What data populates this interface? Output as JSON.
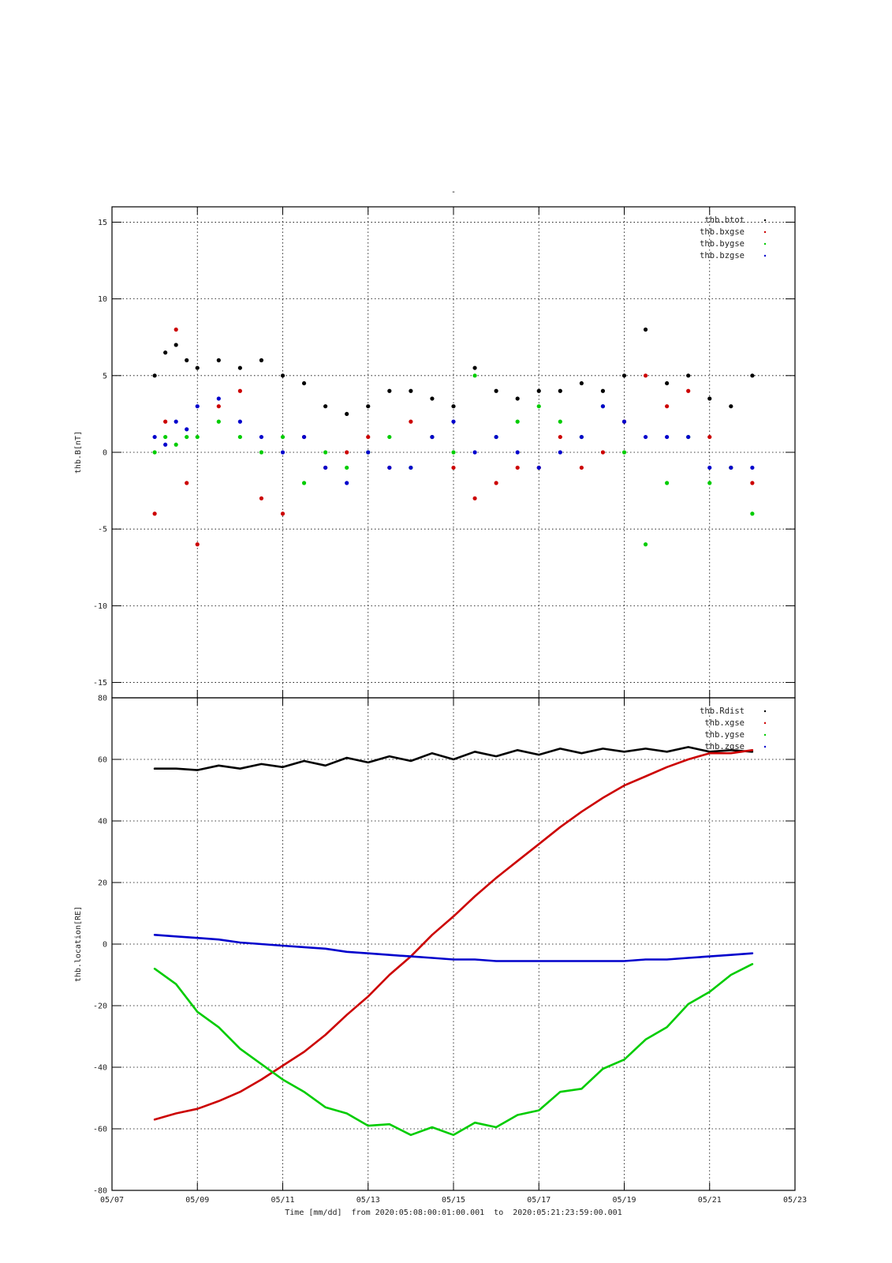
{
  "page_title": "-",
  "chart_data": [
    {
      "type": "scatter",
      "ylabel": "thb.B[nT]",
      "xlim": [
        "05/07",
        "05/23"
      ],
      "ylim": [
        -16,
        16
      ],
      "yticks": [
        15,
        10,
        5,
        0,
        -5,
        -10,
        -15
      ],
      "ytick_labels": [
        "15",
        "10",
        "5",
        "0",
        "-5",
        "-10",
        "-15"
      ],
      "grid": true,
      "legend_position": "top-right",
      "series": [
        {
          "name": "thb.btot",
          "color": "#000000",
          "x": [
            "05/08",
            "05/08 06h",
            "05/08 12h",
            "05/08 18h",
            "05/09",
            "05/09 12h",
            "05/10",
            "05/10 12h",
            "05/11",
            "05/11 12h",
            "05/12",
            "05/12 12h",
            "05/13",
            "05/13 12h",
            "05/14",
            "05/14 12h",
            "05/15",
            "05/15 12h",
            "05/16",
            "05/16 12h",
            "05/17",
            "05/17 12h",
            "05/18",
            "05/18 12h",
            "05/19",
            "05/19 12h",
            "05/20",
            "05/20 12h",
            "05/21",
            "05/21 12h",
            "05/22"
          ],
          "values": [
            5.0,
            6.5,
            7.0,
            6.0,
            5.5,
            6.0,
            5.5,
            6.0,
            5.0,
            4.5,
            3.0,
            2.5,
            3.0,
            4.0,
            4.0,
            3.5,
            3.0,
            5.5,
            4.0,
            3.5,
            4.0,
            4.0,
            4.5,
            4.0,
            5.0,
            8.0,
            4.5,
            5.0,
            3.5,
            3.0,
            5.0
          ]
        },
        {
          "name": "thb.bxgse",
          "color": "#cc0000",
          "x": [
            "05/08",
            "05/08 06h",
            "05/08 12h",
            "05/08 18h",
            "05/09",
            "05/09 12h",
            "05/10",
            "05/10 12h",
            "05/11",
            "05/11 12h",
            "05/12",
            "05/12 12h",
            "05/13",
            "05/13 12h",
            "05/14",
            "05/14 12h",
            "05/15",
            "05/15 12h",
            "05/16",
            "05/16 12h",
            "05/17",
            "05/17 12h",
            "05/18",
            "05/18 12h",
            "05/19",
            "05/19 12h",
            "05/20",
            "05/20 12h",
            "05/21",
            "05/21 12h",
            "05/22"
          ],
          "values": [
            -4.0,
            2.0,
            8.0,
            -2.0,
            -6.0,
            3.0,
            4.0,
            -3.0,
            -4.0,
            1.0,
            -1.0,
            0.0,
            1.0,
            -1.0,
            2.0,
            1.0,
            -1.0,
            -3.0,
            -2.0,
            -1.0,
            -1.0,
            1.0,
            -1.0,
            0.0,
            2.0,
            5.0,
            3.0,
            4.0,
            1.0,
            -1.0,
            -2.0
          ]
        },
        {
          "name": "thb.bygse",
          "color": "#00cc00",
          "x": [
            "05/08",
            "05/08 06h",
            "05/08 12h",
            "05/08 18h",
            "05/09",
            "05/09 12h",
            "05/10",
            "05/10 12h",
            "05/11",
            "05/11 12h",
            "05/12",
            "05/12 12h",
            "05/13",
            "05/13 12h",
            "05/14",
            "05/14 12h",
            "05/15",
            "05/15 12h",
            "05/16",
            "05/16 12h",
            "05/17",
            "05/17 12h",
            "05/18",
            "05/18 12h",
            "05/19",
            "05/19 12h",
            "05/20",
            "05/20 12h",
            "05/21",
            "05/21 12h",
            "05/22"
          ],
          "values": [
            0.0,
            1.0,
            0.5,
            1.0,
            1.0,
            2.0,
            1.0,
            0.0,
            1.0,
            -2.0,
            0.0,
            -1.0,
            0.0,
            1.0,
            -1.0,
            1.0,
            0.0,
            5.0,
            1.0,
            2.0,
            3.0,
            2.0,
            1.0,
            3.0,
            0.0,
            -6.0,
            -2.0,
            1.0,
            -2.0,
            -1.0,
            -4.0
          ]
        },
        {
          "name": "thb.bzgse",
          "color": "#0000cc",
          "x": [
            "05/08",
            "05/08 06h",
            "05/08 12h",
            "05/08 18h",
            "05/09",
            "05/09 12h",
            "05/10",
            "05/10 12h",
            "05/11",
            "05/11 12h",
            "05/12",
            "05/12 12h",
            "05/13",
            "05/13 12h",
            "05/14",
            "05/14 12h",
            "05/15",
            "05/15 12h",
            "05/16",
            "05/16 12h",
            "05/17",
            "05/17 12h",
            "05/18",
            "05/18 12h",
            "05/19",
            "05/19 12h",
            "05/20",
            "05/20 12h",
            "05/21",
            "05/21 12h",
            "05/22"
          ],
          "values": [
            1.0,
            0.5,
            2.0,
            1.5,
            3.0,
            3.5,
            2.0,
            1.0,
            0.0,
            1.0,
            -1.0,
            -2.0,
            0.0,
            -1.0,
            -1.0,
            1.0,
            2.0,
            0.0,
            1.0,
            0.0,
            -1.0,
            0.0,
            1.0,
            3.0,
            2.0,
            1.0,
            1.0,
            1.0,
            -1.0,
            -1.0,
            -1.0
          ]
        }
      ]
    },
    {
      "type": "line",
      "ylabel": "thb.location[RE]",
      "xlabel": "Time [mm/dd]  from 2020:05:08:00:01:00.001  to  2020:05:21:23:59:00.001",
      "xlim": [
        "05/07",
        "05/23"
      ],
      "ylim": [
        -80,
        80
      ],
      "yticks": [
        80,
        60,
        40,
        20,
        0,
        -20,
        -40,
        -60,
        -80
      ],
      "ytick_labels": [
        "80",
        "60",
        "40",
        "20",
        "0",
        "-20",
        "-40",
        "-60",
        "-80"
      ],
      "xticks": [
        "05/07",
        "05/09",
        "05/11",
        "05/13",
        "05/15",
        "05/17",
        "05/19",
        "05/21",
        "05/23"
      ],
      "grid": true,
      "legend_position": "top-right",
      "series": [
        {
          "name": "thb.Rdist",
          "color": "#000000",
          "x": [
            "05/08",
            "05/08 12h",
            "05/09",
            "05/09 12h",
            "05/10",
            "05/10 12h",
            "05/11",
            "05/11 12h",
            "05/12",
            "05/12 12h",
            "05/13",
            "05/13 12h",
            "05/14",
            "05/14 12h",
            "05/15",
            "05/15 12h",
            "05/16",
            "05/16 12h",
            "05/17",
            "05/17 12h",
            "05/18",
            "05/18 12h",
            "05/19",
            "05/19 12h",
            "05/20",
            "05/20 12h",
            "05/21",
            "05/21 12h",
            "05/22"
          ],
          "values": [
            57.0,
            57.0,
            56.5,
            58.0,
            57.0,
            58.5,
            57.5,
            59.5,
            58.0,
            60.5,
            59.0,
            61.0,
            59.5,
            62.0,
            60.0,
            62.5,
            61.0,
            63.0,
            61.5,
            63.5,
            62.0,
            63.5,
            62.5,
            63.5,
            62.5,
            64.0,
            62.5,
            63.0,
            62.5
          ]
        },
        {
          "name": "thb.xgse",
          "color": "#cc0000",
          "x": [
            "05/08",
            "05/08 12h",
            "05/09",
            "05/09 12h",
            "05/10",
            "05/10 12h",
            "05/11",
            "05/11 12h",
            "05/12",
            "05/12 12h",
            "05/13",
            "05/13 12h",
            "05/14",
            "05/14 12h",
            "05/15",
            "05/15 12h",
            "05/16",
            "05/16 12h",
            "05/17",
            "05/17 12h",
            "05/18",
            "05/18 12h",
            "05/19",
            "05/19 12h",
            "05/20",
            "05/20 12h",
            "05/21",
            "05/21 12h",
            "05/22"
          ],
          "values": [
            -57.0,
            -55.0,
            -53.5,
            -51.0,
            -48.0,
            -44.0,
            -39.5,
            -35.0,
            -29.5,
            -23.0,
            -17.0,
            -10.0,
            -4.0,
            3.0,
            9.0,
            15.5,
            21.5,
            27.0,
            32.5,
            38.0,
            43.0,
            47.5,
            51.5,
            54.5,
            57.5,
            60.0,
            62.0,
            62.0,
            63.0
          ]
        },
        {
          "name": "thb.ygse",
          "color": "#00cc00",
          "x": [
            "05/08",
            "05/08 12h",
            "05/09",
            "05/09 12h",
            "05/10",
            "05/10 12h",
            "05/11",
            "05/11 12h",
            "05/12",
            "05/12 12h",
            "05/13",
            "05/13 12h",
            "05/14",
            "05/14 12h",
            "05/15",
            "05/15 12h",
            "05/16",
            "05/16 12h",
            "05/17",
            "05/17 12h",
            "05/18",
            "05/18 12h",
            "05/19",
            "05/19 12h",
            "05/20",
            "05/20 12h",
            "05/21",
            "05/21 12h",
            "05/22"
          ],
          "values": [
            -8.0,
            -13.0,
            -22.0,
            -27.0,
            -34.0,
            -39.0,
            -44.0,
            -48.0,
            -53.0,
            -55.0,
            -59.0,
            -58.5,
            -62.0,
            -59.5,
            -62.0,
            -58.0,
            -59.5,
            -55.5,
            -54.0,
            -48.0,
            -47.0,
            -40.5,
            -37.5,
            -31.0,
            -27.0,
            -19.5,
            -15.5,
            -10.0,
            -6.5
          ]
        },
        {
          "name": "thb.zgse",
          "color": "#0000cc",
          "x": [
            "05/08",
            "05/08 12h",
            "05/09",
            "05/09 12h",
            "05/10",
            "05/10 12h",
            "05/11",
            "05/11 12h",
            "05/12",
            "05/12 12h",
            "05/13",
            "05/13 12h",
            "05/14",
            "05/14 12h",
            "05/15",
            "05/15 12h",
            "05/16",
            "05/16 12h",
            "05/17",
            "05/17 12h",
            "05/18",
            "05/18 12h",
            "05/19",
            "05/19 12h",
            "05/20",
            "05/20 12h",
            "05/21",
            "05/21 12h",
            "05/22"
          ],
          "values": [
            3.0,
            2.5,
            2.0,
            1.5,
            0.5,
            0.0,
            -0.5,
            -1.0,
            -1.5,
            -2.5,
            -3.0,
            -3.5,
            -4.0,
            -4.5,
            -5.0,
            -5.0,
            -5.5,
            -5.5,
            -5.5,
            -5.5,
            -5.5,
            -5.5,
            -5.5,
            -5.0,
            -5.0,
            -4.5,
            -4.0,
            -3.5,
            -3.0
          ]
        }
      ]
    }
  ]
}
